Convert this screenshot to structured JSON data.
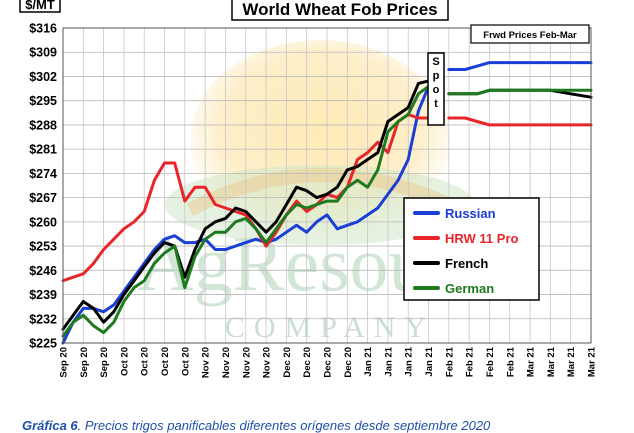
{
  "watermark": {
    "line1": "AgResource",
    "line2": "COMPANY"
  },
  "caption": {
    "label": "Gráfica 6",
    "text": ". Precios trigos panificables diferentes orígenes desde septiembre 2020"
  },
  "chart_data": {
    "type": "line",
    "title": "World Wheat Fob Prices",
    "ylabel": "$/MT",
    "xlabel": "",
    "ylim": [
      225,
      316
    ],
    "yticks": [
      225,
      232,
      239,
      246,
      253,
      260,
      267,
      274,
      281,
      288,
      295,
      302,
      309,
      316
    ],
    "ytick_labels": [
      "$225",
      "$232",
      "$239",
      "$246",
      "$253",
      "$260",
      "$267",
      "$274",
      "$281",
      "$288",
      "$295",
      "$302",
      "$309",
      "$316"
    ],
    "xtick_labels": [
      "Sep 20",
      "Sep 20",
      "Sep 20",
      "Oct 20",
      "Oct 20",
      "Oct 20",
      "Oct 20",
      "Nov 20",
      "Nov 20",
      "Nov 20",
      "Nov 20",
      "Dec 20",
      "Dec 20",
      "Dec 20",
      "Dec 20",
      "Jan 21",
      "Jan 21",
      "Jan 21",
      "Jan 21",
      "Feb 21",
      "Feb 21",
      "Feb 21",
      "Feb 21",
      "Mar 21",
      "Mar 21",
      "Mar 21",
      "Mar 21"
    ],
    "spot_label": "Spot",
    "forward_label": "Frwd Prices Feb-Mar",
    "grid": true,
    "legend_position": "right",
    "series": [
      {
        "name": "Russian",
        "color": "#1a3fd6",
        "x": [
          0,
          0.5,
          1,
          1.5,
          2,
          2.5,
          3,
          3.5,
          4,
          4.5,
          5,
          5.5,
          6,
          6.5,
          7,
          7.5,
          8,
          8.5,
          9,
          9.5,
          10,
          10.5,
          11,
          11.5,
          12,
          12.5,
          13,
          13.5,
          14,
          14.5,
          15,
          15.5,
          16,
          16.5,
          17,
          17.5,
          18.2
        ],
        "y": [
          225,
          231,
          235,
          235,
          234,
          236,
          240,
          244,
          248,
          252,
          255,
          256,
          254,
          254,
          255,
          252,
          252,
          253,
          254,
          255,
          254,
          255,
          257,
          259,
          257,
          260,
          262,
          258,
          259,
          260,
          262,
          264,
          268,
          272,
          278,
          292,
          302
        ]
      },
      {
        "name": "HRW 11 Pro",
        "color": "#e8252a",
        "x": [
          0,
          0.5,
          1,
          1.5,
          2,
          2.5,
          3,
          3.5,
          4,
          4.5,
          5,
          5.5,
          6,
          6.5,
          7,
          7.5,
          8,
          8.5,
          9,
          9.5,
          10,
          10.5,
          11,
          11.5,
          12,
          12.5,
          13,
          13.5,
          14,
          14.5,
          15,
          15.5,
          16,
          16.5,
          17,
          17.5,
          18.2
        ],
        "y": [
          243,
          244,
          245,
          248,
          252,
          255,
          258,
          260,
          263,
          272,
          277,
          277,
          266,
          270,
          270,
          265,
          264,
          263,
          262,
          258,
          253,
          257,
          262,
          266,
          263,
          265,
          268,
          267,
          270,
          278,
          280,
          283,
          280,
          289,
          291,
          290,
          290
        ]
      },
      {
        "name": "French",
        "color": "#000000",
        "x": [
          0,
          0.5,
          1,
          1.5,
          2,
          2.5,
          3,
          3.5,
          4,
          4.5,
          5,
          5.5,
          6,
          6.5,
          7,
          7.5,
          8,
          8.5,
          9,
          9.5,
          10,
          10.5,
          11,
          11.5,
          12,
          12.5,
          13,
          13.5,
          14,
          14.5,
          15,
          15.5,
          16,
          16.5,
          17,
          17.5,
          18.2
        ],
        "y": [
          229,
          233,
          237,
          235,
          231,
          234,
          239,
          243,
          247,
          251,
          254,
          253,
          244,
          252,
          258,
          260,
          261,
          264,
          263,
          260,
          257,
          260,
          265,
          270,
          269,
          267,
          268,
          270,
          275,
          276,
          278,
          280,
          289,
          291,
          293,
          300,
          301
        ]
      },
      {
        "name": "German",
        "color": "#1e7a1e",
        "x": [
          0,
          0.5,
          1,
          1.5,
          2,
          2.5,
          3,
          3.5,
          4,
          4.5,
          5,
          5.5,
          6,
          6.5,
          7,
          7.5,
          8,
          8.5,
          9,
          9.5,
          10,
          10.5,
          11,
          11.5,
          12,
          12.5,
          13,
          13.5,
          14,
          14.5,
          15,
          15.5,
          16,
          16.5,
          17,
          17.5,
          18.2
        ],
        "y": [
          227,
          231,
          233,
          230,
          228,
          231,
          237,
          241,
          243,
          248,
          251,
          253,
          241,
          250,
          255,
          257,
          257,
          260,
          261,
          258,
          254,
          258,
          262,
          265,
          264,
          265,
          266,
          266,
          270,
          272,
          270,
          275,
          286,
          289,
          291,
          297,
          300
        ]
      }
    ],
    "forward_series": [
      {
        "name": "Russian",
        "color": "#1a3fd6",
        "x": [
          19,
          19.8,
          20.4,
          21,
          22,
          23,
          24,
          25,
          26
        ],
        "y": [
          304,
          304,
          305,
          306,
          306,
          306,
          306,
          306,
          306
        ]
      },
      {
        "name": "HRW 11 Pro",
        "color": "#e8252a",
        "x": [
          19,
          19.8,
          20.4,
          21,
          22,
          23,
          24,
          25,
          26
        ],
        "y": [
          290,
          290,
          289,
          288,
          288,
          288,
          288,
          288,
          288
        ]
      },
      {
        "name": "French",
        "color": "#000000",
        "x": [
          19,
          19.8,
          20.4,
          21,
          22,
          23,
          24,
          25,
          26
        ],
        "y": [
          297,
          297,
          297,
          298,
          298,
          298,
          298,
          297,
          296
        ]
      },
      {
        "name": "German",
        "color": "#1e7a1e",
        "x": [
          19,
          19.8,
          20.4,
          21,
          22,
          23,
          24,
          25,
          26
        ],
        "y": [
          297,
          297,
          297,
          298,
          298,
          298,
          298,
          298,
          298
        ]
      }
    ]
  }
}
